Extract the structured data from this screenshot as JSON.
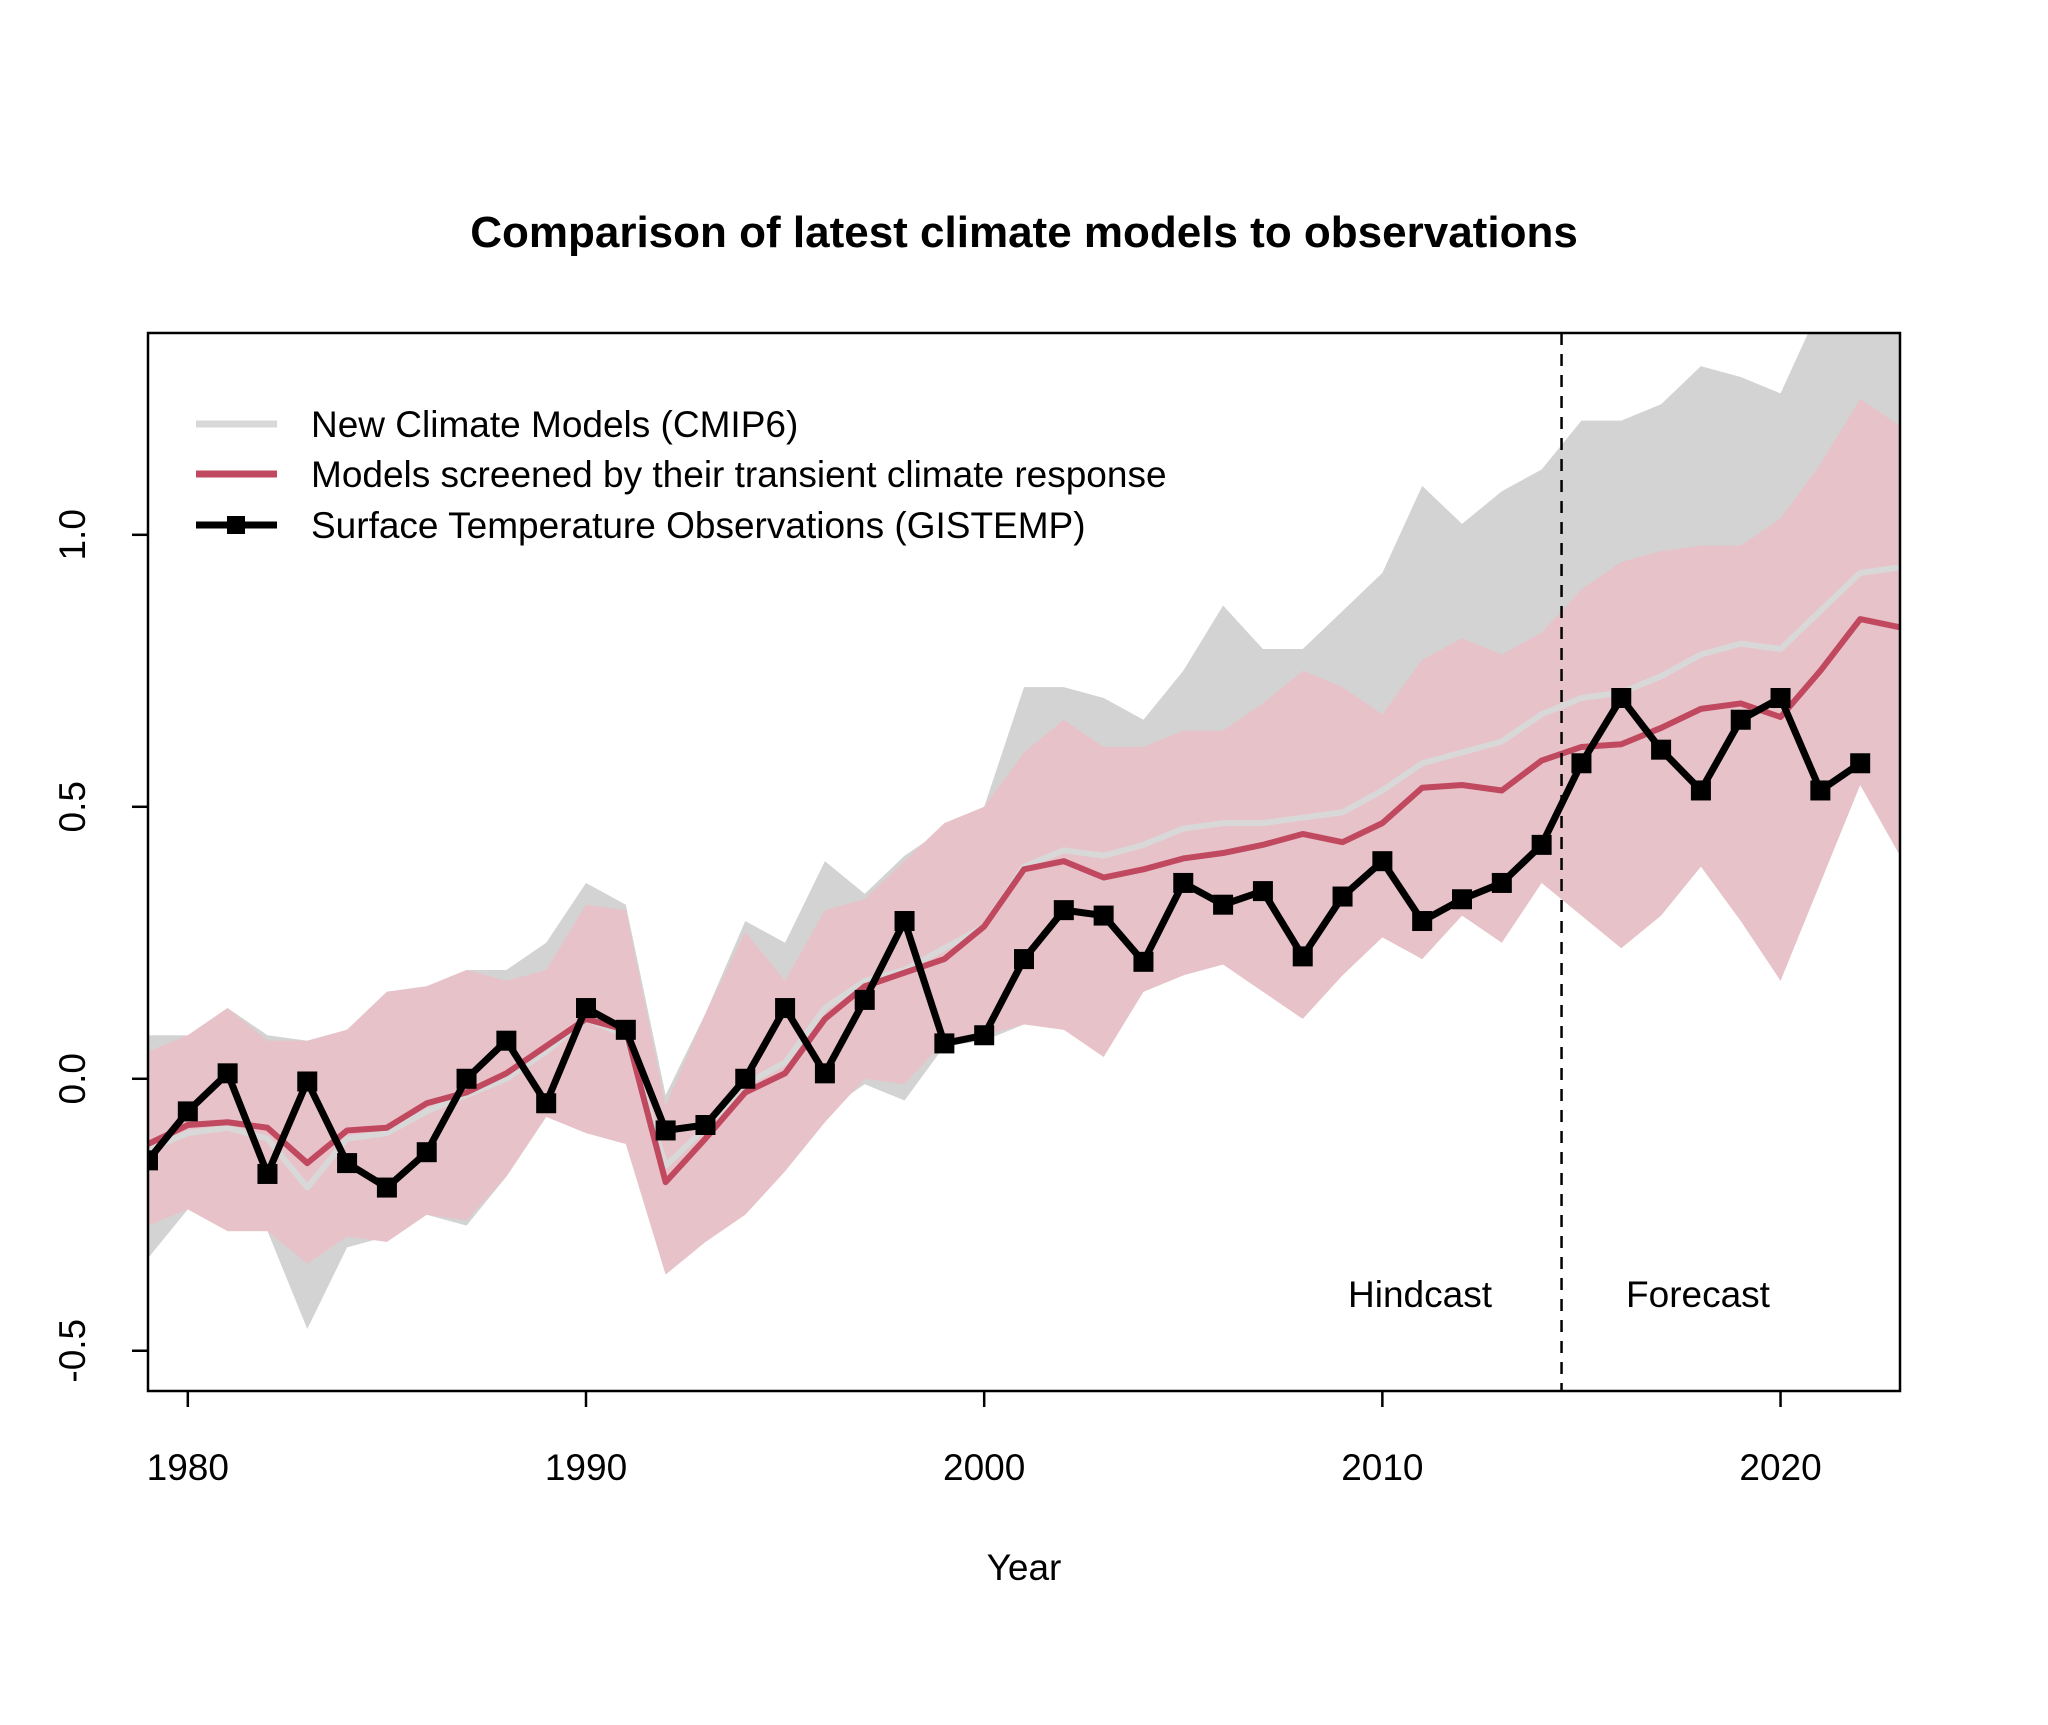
{
  "chart_data": {
    "type": "line",
    "title": "Comparison of latest climate models to observations",
    "xlabel": "Year",
    "ylabel": "",
    "xlim": [
      1979,
      2023
    ],
    "ylim": [
      -0.574,
      1.371
    ],
    "xticks": [
      1980,
      1990,
      2000,
      2010,
      2020
    ],
    "xtick_labels": [
      "1980",
      "1990",
      "2000",
      "2010",
      "2020"
    ],
    "yticks": [
      -0.5,
      0.0,
      0.5,
      1.0
    ],
    "ytick_labels": [
      "-0.5",
      "0.0",
      "0.5",
      "1.0"
    ],
    "grid": false,
    "legend_position": "top-left",
    "years": [
      1979,
      1980,
      1981,
      1982,
      1983,
      1984,
      1985,
      1986,
      1987,
      1988,
      1989,
      1990,
      1991,
      1992,
      1993,
      1994,
      1995,
      1996,
      1997,
      1998,
      1999,
      2000,
      2001,
      2002,
      2003,
      2004,
      2005,
      2006,
      2007,
      2008,
      2009,
      2010,
      2011,
      2012,
      2013,
      2014,
      2015,
      2016,
      2017,
      2018,
      2019,
      2020,
      2021,
      2022,
      2023
    ],
    "series": [
      {
        "name": "New Climate Models (CMIP6)",
        "color": "#d8d8d8",
        "band_color": "#d3d3d3",
        "values": [
          -0.13,
          -0.1,
          -0.09,
          -0.11,
          -0.2,
          -0.11,
          -0.1,
          -0.06,
          -0.03,
          0.0,
          0.05,
          0.11,
          0.08,
          -0.16,
          -0.09,
          -0.01,
          0.03,
          0.13,
          0.18,
          0.2,
          0.24,
          0.28,
          0.39,
          0.42,
          0.41,
          0.43,
          0.46,
          0.47,
          0.47,
          0.48,
          0.49,
          0.53,
          0.58,
          0.6,
          0.62,
          0.67,
          0.7,
          0.71,
          0.74,
          0.78,
          0.8,
          0.79,
          0.86,
          0.93,
          0.94
        ],
        "upper": [
          0.08,
          0.08,
          0.13,
          0.08,
          0.07,
          0.09,
          0.16,
          0.17,
          0.2,
          0.2,
          0.25,
          0.36,
          0.32,
          -0.03,
          0.12,
          0.29,
          0.25,
          0.4,
          0.34,
          0.41,
          0.46,
          0.5,
          0.72,
          0.72,
          0.7,
          0.66,
          0.75,
          0.87,
          0.79,
          0.79,
          0.86,
          0.93,
          1.09,
          1.02,
          1.08,
          1.12,
          1.21,
          1.21,
          1.24,
          1.31,
          1.29,
          1.26,
          1.42,
          1.45,
          1.45
        ],
        "lower": [
          -0.33,
          -0.24,
          -0.28,
          -0.28,
          -0.46,
          -0.31,
          -0.29,
          -0.25,
          -0.27,
          -0.18,
          -0.07,
          -0.05,
          -0.08,
          -0.33,
          -0.27,
          -0.22,
          -0.14,
          -0.06,
          -0.01,
          -0.04,
          0.06,
          0.07,
          0.1,
          0.09,
          0.05,
          0.16,
          0.19,
          0.22,
          0.17,
          0.12,
          0.2,
          0.27,
          0.23,
          0.3,
          0.26,
          0.37,
          0.32,
          0.27,
          0.32,
          0.4,
          0.3,
          0.19,
          0.37,
          0.54,
          0.42
        ]
      },
      {
        "name": "Models screened by their transient climate response",
        "color": "#c0485f",
        "band_color": "#e7c2c9",
        "values": [
          -0.12,
          -0.085,
          -0.08,
          -0.09,
          -0.155,
          -0.095,
          -0.09,
          -0.045,
          -0.025,
          0.01,
          0.06,
          0.11,
          0.09,
          -0.19,
          -0.11,
          -0.025,
          0.01,
          0.11,
          0.17,
          0.195,
          0.22,
          0.28,
          0.385,
          0.4,
          0.37,
          0.385,
          0.405,
          0.415,
          0.43,
          0.45,
          0.435,
          0.47,
          0.535,
          0.54,
          0.53,
          0.585,
          0.61,
          0.615,
          0.645,
          0.68,
          0.69,
          0.665,
          0.75,
          0.845,
          0.83
        ],
        "upper": [
          0.05,
          0.08,
          0.13,
          0.07,
          0.07,
          0.09,
          0.16,
          0.17,
          0.2,
          0.18,
          0.2,
          0.32,
          0.31,
          -0.05,
          0.12,
          0.27,
          0.18,
          0.31,
          0.33,
          0.4,
          0.47,
          0.5,
          0.6,
          0.66,
          0.61,
          0.61,
          0.64,
          0.64,
          0.69,
          0.75,
          0.72,
          0.67,
          0.77,
          0.81,
          0.78,
          0.82,
          0.9,
          0.95,
          0.97,
          0.98,
          0.98,
          1.03,
          1.13,
          1.25,
          1.2
        ],
        "lower": [
          -0.27,
          -0.24,
          -0.28,
          -0.28,
          -0.34,
          -0.29,
          -0.3,
          -0.25,
          -0.26,
          -0.18,
          -0.07,
          -0.1,
          -0.12,
          -0.36,
          -0.3,
          -0.25,
          -0.17,
          -0.08,
          0.0,
          -0.01,
          0.07,
          0.08,
          0.1,
          0.09,
          0.04,
          0.16,
          0.19,
          0.21,
          0.16,
          0.11,
          0.19,
          0.26,
          0.22,
          0.3,
          0.25,
          0.36,
          0.3,
          0.24,
          0.3,
          0.39,
          0.29,
          0.18,
          0.36,
          0.54,
          0.41
        ]
      },
      {
        "name": "Surface Temperature Observations (GISTEMP)",
        "color": "#000000",
        "marker": "square",
        "values": [
          -0.15,
          -0.06,
          0.01,
          -0.175,
          -0.005,
          -0.155,
          -0.2,
          -0.135,
          0.0,
          0.07,
          -0.045,
          0.13,
          0.09,
          -0.095,
          -0.085,
          0.0,
          0.13,
          0.01,
          0.145,
          0.29,
          0.065,
          0.08,
          0.22,
          0.31,
          0.3,
          0.215,
          0.36,
          0.32,
          0.345,
          0.225,
          0.335,
          0.4,
          0.29,
          0.33,
          0.36,
          0.43,
          0.58,
          0.7,
          0.605,
          0.53,
          0.66,
          0.7,
          0.53,
          0.58,
          null
        ]
      }
    ],
    "annotations": {
      "divider_year": 2014.5,
      "hindcast_label": "Hindcast",
      "forecast_label": "Forecast"
    }
  }
}
